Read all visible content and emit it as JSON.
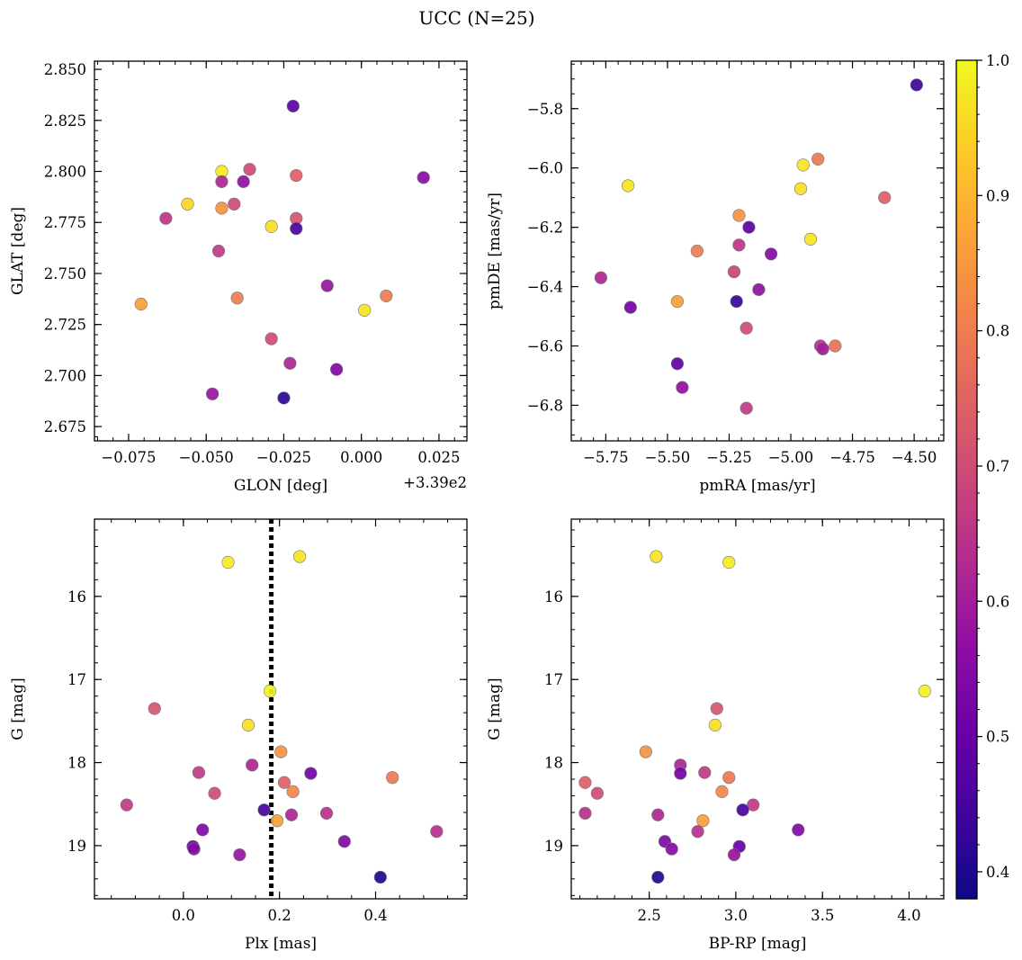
{
  "chart_data": {
    "suptitle": "UCC (N=25)",
    "type": "scatter",
    "colormap": "plasma",
    "point_edge_color": "#777777",
    "colorbar": {
      "range": [
        0.38,
        1.0
      ],
      "ticks": [
        "0.4",
        "0.5",
        "0.6",
        "0.7",
        "0.8",
        "0.9",
        "1.0"
      ]
    },
    "panels": [
      {
        "id": "glon-glat",
        "xlabel": "GLON [deg]",
        "ylabel": "GLAT [deg]",
        "xlim": [
          -0.086,
          0.034
        ],
        "ylim": [
          2.668,
          2.854
        ],
        "x_offset_label": "+3.39e2",
        "xticks": [
          "−0.075",
          "−0.050",
          "−0.025",
          "0.000",
          "0.025"
        ],
        "yticks": [
          "2.675",
          "2.700",
          "2.725",
          "2.750",
          "2.775",
          "2.800",
          "2.825",
          "2.850"
        ],
        "points": [
          {
            "x": -0.022,
            "y": 2.832,
            "c": 0.48
          },
          {
            "x": 0.02,
            "y": 2.797,
            "c": 0.56
          },
          {
            "x": -0.045,
            "y": 2.8,
            "c": 0.98
          },
          {
            "x": -0.036,
            "y": 2.801,
            "c": 0.7
          },
          {
            "x": -0.045,
            "y": 2.795,
            "c": 0.62
          },
          {
            "x": -0.038,
            "y": 2.795,
            "c": 0.57
          },
          {
            "x": -0.021,
            "y": 2.798,
            "c": 0.74
          },
          {
            "x": -0.056,
            "y": 2.784,
            "c": 0.95
          },
          {
            "x": -0.041,
            "y": 2.784,
            "c": 0.7
          },
          {
            "x": -0.045,
            "y": 2.782,
            "c": 0.84
          },
          {
            "x": -0.063,
            "y": 2.777,
            "c": 0.65
          },
          {
            "x": -0.021,
            "y": 2.777,
            "c": 0.72
          },
          {
            "x": -0.029,
            "y": 2.773,
            "c": 0.96
          },
          {
            "x": -0.021,
            "y": 2.772,
            "c": 0.45
          },
          {
            "x": -0.046,
            "y": 2.761,
            "c": 0.66
          },
          {
            "x": -0.011,
            "y": 2.744,
            "c": 0.58
          },
          {
            "x": -0.071,
            "y": 2.735,
            "c": 0.86
          },
          {
            "x": -0.04,
            "y": 2.738,
            "c": 0.8
          },
          {
            "x": 0.008,
            "y": 2.739,
            "c": 0.8
          },
          {
            "x": 0.001,
            "y": 2.732,
            "c": 0.97
          },
          {
            "x": -0.029,
            "y": 2.718,
            "c": 0.7
          },
          {
            "x": -0.023,
            "y": 2.706,
            "c": 0.62
          },
          {
            "x": -0.008,
            "y": 2.703,
            "c": 0.54
          },
          {
            "x": -0.048,
            "y": 2.691,
            "c": 0.58
          },
          {
            "x": -0.025,
            "y": 2.689,
            "c": 0.42
          }
        ]
      },
      {
        "id": "pmra-pmde",
        "xlabel": "pmRA [mas/yr]",
        "ylabel": "pmDE [mas/yr]",
        "xlim": [
          -5.89,
          -4.38
        ],
        "ylim": [
          -6.92,
          -5.64
        ],
        "xticks": [
          "−5.75",
          "−5.50",
          "−5.25",
          "−5.00",
          "−4.75",
          "−4.50"
        ],
        "yticks": [
          "−6.8",
          "−6.6",
          "−6.4",
          "−6.2",
          "−6.0",
          "−5.8"
        ],
        "points": [
          {
            "x": -4.49,
            "y": -5.72,
            "c": 0.44
          },
          {
            "x": -4.89,
            "y": -5.97,
            "c": 0.79
          },
          {
            "x": -4.95,
            "y": -5.99,
            "c": 0.97
          },
          {
            "x": -5.66,
            "y": -6.06,
            "c": 0.97
          },
          {
            "x": -4.96,
            "y": -6.07,
            "c": 0.96
          },
          {
            "x": -4.62,
            "y": -6.1,
            "c": 0.74
          },
          {
            "x": -5.21,
            "y": -6.16,
            "c": 0.84
          },
          {
            "x": -5.17,
            "y": -6.2,
            "c": 0.48
          },
          {
            "x": -4.92,
            "y": -6.24,
            "c": 0.97
          },
          {
            "x": -5.21,
            "y": -6.26,
            "c": 0.65
          },
          {
            "x": -5.38,
            "y": -6.28,
            "c": 0.8
          },
          {
            "x": -5.08,
            "y": -6.29,
            "c": 0.55
          },
          {
            "x": -5.23,
            "y": -6.35,
            "c": 0.68
          },
          {
            "x": -5.77,
            "y": -6.37,
            "c": 0.62
          },
          {
            "x": -5.13,
            "y": -6.41,
            "c": 0.57
          },
          {
            "x": -5.46,
            "y": -6.45,
            "c": 0.86
          },
          {
            "x": -5.22,
            "y": -6.45,
            "c": 0.43
          },
          {
            "x": -5.65,
            "y": -6.47,
            "c": 0.52
          },
          {
            "x": -5.18,
            "y": -6.54,
            "c": 0.7
          },
          {
            "x": -4.88,
            "y": -6.6,
            "c": 0.64
          },
          {
            "x": -4.82,
            "y": -6.6,
            "c": 0.78
          },
          {
            "x": -4.87,
            "y": -6.61,
            "c": 0.6
          },
          {
            "x": -5.46,
            "y": -6.66,
            "c": 0.49
          },
          {
            "x": -5.44,
            "y": -6.74,
            "c": 0.57
          },
          {
            "x": -5.18,
            "y": -6.81,
            "c": 0.66
          }
        ]
      },
      {
        "id": "plx-g",
        "xlabel": "Plx [mas]",
        "ylabel": "G [mag]",
        "xlim": [
          -0.185,
          0.59
        ],
        "ylim": [
          19.64,
          15.07
        ],
        "yticks": [
          "16",
          "17",
          "18",
          "19"
        ],
        "xticks": [
          "0.0",
          "0.2",
          "0.4"
        ],
        "vline": 0.183,
        "points": [
          {
            "x": 0.242,
            "y": 15.52,
            "c": 0.97
          },
          {
            "x": 0.093,
            "y": 15.59,
            "c": 0.98
          },
          {
            "x": 0.18,
            "y": 17.14,
            "c": 0.99
          },
          {
            "x": -0.06,
            "y": 17.35,
            "c": 0.72
          },
          {
            "x": 0.135,
            "y": 17.55,
            "c": 0.96
          },
          {
            "x": 0.203,
            "y": 17.87,
            "c": 0.84
          },
          {
            "x": 0.143,
            "y": 18.03,
            "c": 0.62
          },
          {
            "x": 0.032,
            "y": 18.12,
            "c": 0.66
          },
          {
            "x": 0.265,
            "y": 18.13,
            "c": 0.52
          },
          {
            "x": 0.435,
            "y": 18.18,
            "c": 0.79
          },
          {
            "x": 0.21,
            "y": 18.24,
            "c": 0.74
          },
          {
            "x": 0.228,
            "y": 18.35,
            "c": 0.82
          },
          {
            "x": 0.065,
            "y": 18.37,
            "c": 0.7
          },
          {
            "x": -0.118,
            "y": 18.51,
            "c": 0.66
          },
          {
            "x": 0.168,
            "y": 18.57,
            "c": 0.45
          },
          {
            "x": 0.298,
            "y": 18.61,
            "c": 0.64
          },
          {
            "x": 0.225,
            "y": 18.63,
            "c": 0.62
          },
          {
            "x": 0.195,
            "y": 18.7,
            "c": 0.86
          },
          {
            "x": 0.04,
            "y": 18.81,
            "c": 0.54
          },
          {
            "x": 0.527,
            "y": 18.83,
            "c": 0.64
          },
          {
            "x": 0.335,
            "y": 18.95,
            "c": 0.54
          },
          {
            "x": 0.02,
            "y": 19.01,
            "c": 0.5
          },
          {
            "x": 0.022,
            "y": 19.04,
            "c": 0.55
          },
          {
            "x": 0.117,
            "y": 19.11,
            "c": 0.58
          },
          {
            "x": 0.41,
            "y": 19.38,
            "c": 0.4
          }
        ]
      },
      {
        "id": "bprp-g",
        "xlabel": "BP-RP [mag]",
        "ylabel": "G [mag]",
        "xlim": [
          2.05,
          4.2
        ],
        "ylim": [
          19.64,
          15.07
        ],
        "xticks": [
          "2.5",
          "3.0",
          "3.5",
          "4.0"
        ],
        "yticks": [
          "16",
          "17",
          "18",
          "19"
        ],
        "points": [
          {
            "x": 2.54,
            "y": 15.52,
            "c": 0.97
          },
          {
            "x": 2.96,
            "y": 15.59,
            "c": 0.98
          },
          {
            "x": 4.09,
            "y": 17.14,
            "c": 0.99
          },
          {
            "x": 2.89,
            "y": 17.35,
            "c": 0.72
          },
          {
            "x": 2.88,
            "y": 17.55,
            "c": 0.96
          },
          {
            "x": 2.48,
            "y": 17.87,
            "c": 0.84
          },
          {
            "x": 2.68,
            "y": 18.03,
            "c": 0.62
          },
          {
            "x": 2.82,
            "y": 18.12,
            "c": 0.66
          },
          {
            "x": 2.68,
            "y": 18.13,
            "c": 0.52
          },
          {
            "x": 2.96,
            "y": 18.18,
            "c": 0.79
          },
          {
            "x": 2.13,
            "y": 18.24,
            "c": 0.74
          },
          {
            "x": 2.92,
            "y": 18.35,
            "c": 0.82
          },
          {
            "x": 2.2,
            "y": 18.37,
            "c": 0.7
          },
          {
            "x": 3.1,
            "y": 18.51,
            "c": 0.66
          },
          {
            "x": 3.04,
            "y": 18.57,
            "c": 0.45
          },
          {
            "x": 2.13,
            "y": 18.61,
            "c": 0.64
          },
          {
            "x": 2.55,
            "y": 18.63,
            "c": 0.62
          },
          {
            "x": 2.81,
            "y": 18.7,
            "c": 0.86
          },
          {
            "x": 3.36,
            "y": 18.81,
            "c": 0.54
          },
          {
            "x": 2.78,
            "y": 18.83,
            "c": 0.64
          },
          {
            "x": 2.59,
            "y": 18.95,
            "c": 0.54
          },
          {
            "x": 3.02,
            "y": 19.01,
            "c": 0.5
          },
          {
            "x": 2.63,
            "y": 19.04,
            "c": 0.55
          },
          {
            "x": 2.99,
            "y": 19.11,
            "c": 0.58
          },
          {
            "x": 2.55,
            "y": 19.38,
            "c": 0.4
          }
        ]
      }
    ]
  }
}
